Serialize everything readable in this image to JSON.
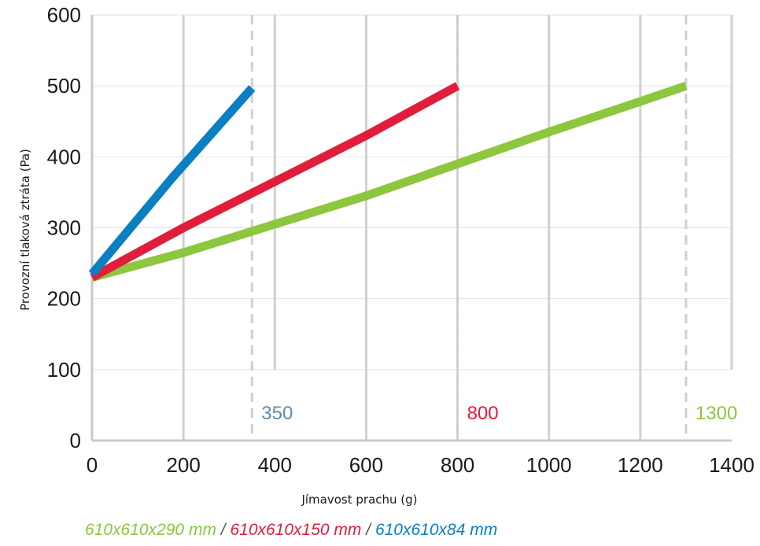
{
  "chart_data": {
    "type": "line",
    "xlabel": "Jímavost prachu (g)",
    "ylabel": "Provozní tlaková ztráta (Pa)",
    "xlim": [
      0,
      1400
    ],
    "ylim": [
      0,
      600
    ],
    "x_ticks": [
      "0",
      "200",
      "400",
      "600",
      "800",
      "1000",
      "1200",
      "1400"
    ],
    "y_ticks": [
      "0",
      "100",
      "200",
      "300",
      "400",
      "500",
      "600"
    ],
    "grid": "vertical",
    "series": [
      {
        "name": "610x610x290 mm",
        "color": "#8dc63f",
        "x": [
          0,
          200,
          400,
          600,
          800,
          1000,
          1200,
          1300
        ],
        "y": [
          230,
          265,
          305,
          345,
          390,
          435,
          478,
          500
        ]
      },
      {
        "name": "610x610x150 mm",
        "color": "#e01e3c",
        "x": [
          0,
          200,
          400,
          600,
          800
        ],
        "y": [
          230,
          300,
          365,
          430,
          500
        ]
      },
      {
        "name": "610x610x84 mm",
        "color": "#0a7fc2",
        "x": [
          0,
          175,
          350
        ],
        "y": [
          235,
          370,
          497
        ]
      }
    ],
    "markers": [
      {
        "x": 350,
        "label": "350",
        "color": "#5b8fa8"
      },
      {
        "x": 800,
        "label": "800",
        "color": "#e01e3c"
      },
      {
        "x": 1300,
        "label": "1300",
        "color": "#8dc63f"
      }
    ]
  },
  "legend": {
    "separator": "/"
  }
}
